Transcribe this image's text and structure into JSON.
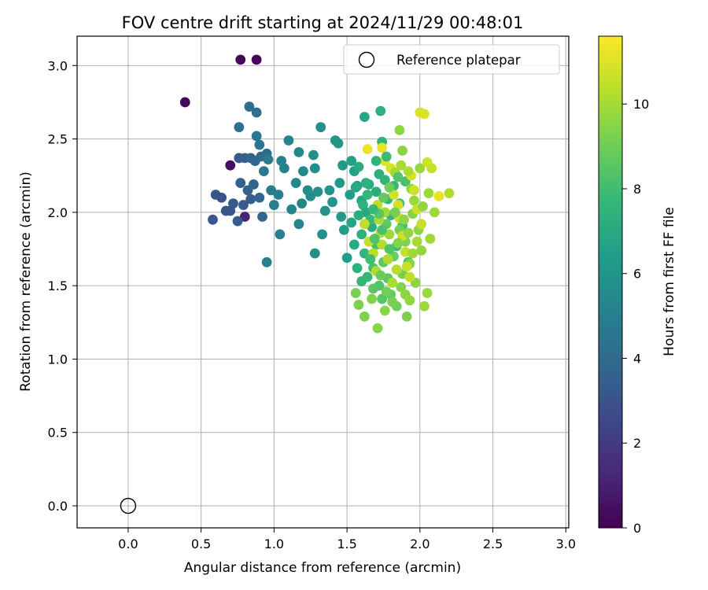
{
  "chart_data": {
    "type": "scatter",
    "title": "FOV centre drift starting at 2024/11/29 00:48:01",
    "xlabel": "Angular distance from reference (arcmin)",
    "ylabel": "Rotation from reference (arcmin)",
    "xlim": [
      -0.35,
      3.02
    ],
    "ylim": [
      -0.15,
      3.2
    ],
    "xticks": [
      0.0,
      0.5,
      1.0,
      1.5,
      2.0,
      2.5,
      3.0
    ],
    "xtick_labels": [
      "0.0",
      "0.5",
      "1.0",
      "1.5",
      "2.0",
      "2.5",
      "3.0"
    ],
    "yticks": [
      0.0,
      0.5,
      1.0,
      1.5,
      2.0,
      2.5,
      3.0
    ],
    "ytick_labels": [
      "0.0",
      "0.5",
      "1.0",
      "1.5",
      "2.0",
      "2.5",
      "3.0"
    ],
    "grid": true,
    "legend": {
      "placement": "upper-right",
      "entries": [
        {
          "label": "Reference platepar",
          "marker": "open-circle"
        }
      ]
    },
    "reference_point": {
      "x": 0.0,
      "y": 0.0
    },
    "colorbar": {
      "label": "Hours from first FF file",
      "min": 0,
      "max": 11.6,
      "ticks": [
        0,
        2,
        4,
        6,
        8,
        10
      ],
      "tick_labels": [
        "0",
        "2",
        "4",
        "6",
        "8",
        "10"
      ],
      "colormap": "viridis",
      "colors": [
        "#440154",
        "#482878",
        "#3e4989",
        "#31688e",
        "#26828e",
        "#1f9e89",
        "#35b779",
        "#6ece58",
        "#b5de2b",
        "#fde725"
      ]
    },
    "points": [
      [
        0.39,
        2.75,
        0.2
      ],
      [
        0.77,
        3.04,
        0.2
      ],
      [
        0.88,
        3.04,
        0.2
      ],
      [
        0.7,
        2.32,
        0.5
      ],
      [
        0.76,
        2.37,
        0.6
      ],
      [
        0.8,
        1.97,
        1.2
      ],
      [
        0.58,
        1.95,
        3.2
      ],
      [
        0.6,
        2.12,
        3.2
      ],
      [
        0.64,
        2.1,
        3.0
      ],
      [
        0.67,
        2.01,
        3.1
      ],
      [
        0.7,
        2.01,
        3.1
      ],
      [
        0.72,
        2.06,
        3.3
      ],
      [
        0.75,
        1.94,
        3.3
      ],
      [
        0.77,
        2.2,
        3.5
      ],
      [
        0.79,
        2.05,
        3.4
      ],
      [
        0.82,
        2.15,
        3.6
      ],
      [
        0.84,
        2.09,
        3.5
      ],
      [
        0.86,
        2.19,
        3.7
      ],
      [
        0.9,
        2.1,
        3.8
      ],
      [
        0.92,
        1.97,
        3.8
      ],
      [
        0.76,
        2.37,
        3.4
      ],
      [
        0.8,
        2.37,
        3.5
      ],
      [
        0.84,
        2.37,
        3.7
      ],
      [
        0.87,
        2.35,
        3.8
      ],
      [
        0.91,
        2.38,
        4.0
      ],
      [
        0.95,
        2.4,
        4.1
      ],
      [
        0.83,
        2.72,
        4.2
      ],
      [
        0.88,
        2.68,
        4.3
      ],
      [
        0.76,
        2.58,
        4.3
      ],
      [
        0.88,
        2.52,
        4.5
      ],
      [
        0.9,
        2.46,
        4.6
      ],
      [
        0.93,
        2.28,
        4.7
      ],
      [
        0.96,
        2.36,
        4.8
      ],
      [
        0.98,
        2.15,
        4.8
      ],
      [
        1.0,
        2.05,
        4.9
      ],
      [
        1.03,
        2.12,
        5.0
      ],
      [
        1.04,
        1.85,
        4.9
      ],
      [
        1.05,
        2.35,
        5.1
      ],
      [
        1.07,
        2.3,
        5.2
      ],
      [
        0.95,
        1.66,
        5.1
      ],
      [
        1.1,
        2.49,
        5.2
      ],
      [
        1.12,
        2.02,
        5.3
      ],
      [
        1.15,
        2.2,
        5.3
      ],
      [
        1.17,
        2.41,
        5.4
      ],
      [
        1.17,
        1.92,
        5.3
      ],
      [
        1.19,
        2.06,
        5.4
      ],
      [
        1.2,
        2.28,
        5.5
      ],
      [
        1.23,
        2.15,
        5.6
      ],
      [
        1.25,
        2.11,
        5.6
      ],
      [
        1.27,
        2.39,
        5.7
      ],
      [
        1.28,
        2.3,
        5.7
      ],
      [
        1.28,
        1.72,
        5.7
      ],
      [
        1.3,
        2.14,
        5.8
      ],
      [
        1.32,
        2.58,
        5.8
      ],
      [
        1.33,
        1.85,
        5.9
      ],
      [
        1.35,
        2.01,
        5.9
      ],
      [
        1.38,
        2.15,
        6.0
      ],
      [
        1.4,
        2.07,
        6.0
      ],
      [
        1.42,
        2.49,
        6.1
      ],
      [
        1.44,
        2.47,
        6.1
      ],
      [
        1.45,
        2.2,
        6.2
      ],
      [
        1.46,
        1.97,
        6.3
      ],
      [
        1.47,
        2.32,
        6.3
      ],
      [
        1.48,
        1.88,
        6.4
      ],
      [
        1.5,
        1.69,
        6.4
      ],
      [
        1.52,
        2.12,
        6.5
      ],
      [
        1.53,
        2.35,
        6.6
      ],
      [
        1.55,
        2.28,
        6.6
      ],
      [
        1.57,
        2.18,
        6.7
      ],
      [
        1.6,
        2.08,
        6.8
      ],
      [
        1.62,
        2.65,
        6.8
      ],
      [
        1.63,
        2.0,
        6.9
      ],
      [
        1.65,
        2.19,
        7.0
      ],
      [
        1.67,
        1.9,
        7.1
      ],
      [
        1.7,
        2.14,
        7.2
      ],
      [
        1.72,
        2.26,
        7.3
      ],
      [
        1.73,
        2.69,
        7.3
      ],
      [
        1.74,
        2.48,
        7.4
      ],
      [
        1.76,
        2.22,
        7.5
      ],
      [
        1.78,
        2.09,
        7.6
      ],
      [
        1.8,
        1.98,
        7.7
      ],
      [
        1.82,
        2.18,
        7.8
      ],
      [
        1.84,
        1.77,
        7.9
      ],
      [
        1.86,
        2.06,
        8.0
      ],
      [
        1.88,
        1.91,
        8.1
      ],
      [
        1.9,
        2.21,
        8.2
      ],
      [
        1.92,
        1.66,
        8.3
      ],
      [
        1.6,
        1.85,
        7.3
      ],
      [
        1.62,
        1.72,
        7.6
      ],
      [
        1.64,
        1.56,
        7.8
      ],
      [
        1.66,
        1.95,
        7.9
      ],
      [
        1.68,
        1.62,
        8.1
      ],
      [
        1.7,
        1.78,
        8.2
      ],
      [
        1.72,
        1.5,
        8.4
      ],
      [
        1.74,
        1.41,
        8.5
      ],
      [
        1.75,
        1.66,
        8.6
      ],
      [
        1.77,
        1.92,
        8.7
      ],
      [
        1.78,
        1.55,
        8.7
      ],
      [
        1.8,
        1.44,
        8.8
      ],
      [
        1.82,
        1.7,
        8.9
      ],
      [
        1.84,
        1.36,
        9.0
      ],
      [
        1.86,
        1.88,
        9.1
      ],
      [
        1.88,
        1.58,
        9.2
      ],
      [
        1.9,
        1.8,
        9.3
      ],
      [
        1.91,
        1.29,
        9.3
      ],
      [
        1.93,
        1.65,
        9.4
      ],
      [
        1.95,
        1.99,
        9.5
      ],
      [
        1.97,
        1.52,
        9.6
      ],
      [
        1.99,
        1.88,
        9.6
      ],
      [
        2.01,
        1.74,
        9.7
      ],
      [
        2.03,
        1.36,
        9.8
      ],
      [
        2.05,
        1.45,
        9.8
      ],
      [
        2.07,
        1.82,
        9.9
      ],
      [
        1.56,
        1.45,
        9.2
      ],
      [
        1.58,
        1.37,
        9.3
      ],
      [
        1.62,
        1.29,
        9.3
      ],
      [
        1.67,
        1.41,
        9.4
      ],
      [
        1.71,
        1.21,
        9.5
      ],
      [
        1.76,
        1.33,
        9.5
      ],
      [
        1.86,
        2.56,
        9.6
      ],
      [
        1.88,
        2.42,
        9.5
      ],
      [
        1.94,
        2.16,
        9.7
      ],
      [
        1.96,
        2.08,
        9.8
      ],
      [
        2.0,
        2.3,
        9.8
      ],
      [
        2.06,
        2.13,
        9.9
      ],
      [
        2.1,
        2.0,
        9.9
      ],
      [
        2.2,
        2.13,
        10.2
      ],
      [
        2.0,
        2.68,
        10.9
      ],
      [
        2.03,
        2.67,
        11.0
      ],
      [
        1.64,
        2.43,
        11.3
      ],
      [
        1.74,
        2.44,
        11.2
      ],
      [
        1.76,
        2.35,
        11.0
      ],
      [
        1.8,
        2.3,
        10.9
      ],
      [
        1.82,
        2.12,
        10.8
      ],
      [
        1.85,
        2.05,
        10.8
      ],
      [
        1.86,
        1.96,
        10.7
      ],
      [
        1.88,
        1.84,
        10.7
      ],
      [
        1.9,
        1.73,
        10.6
      ],
      [
        1.91,
        1.63,
        10.6
      ],
      [
        1.93,
        1.56,
        10.5
      ],
      [
        1.94,
        2.25,
        10.9
      ],
      [
        1.96,
        2.15,
        10.8
      ],
      [
        1.98,
        2.02,
        10.7
      ],
      [
        2.01,
        1.92,
        10.6
      ],
      [
        2.05,
        2.34,
        10.8
      ],
      [
        2.08,
        2.3,
        10.6
      ],
      [
        2.13,
        2.11,
        11.2
      ],
      [
        1.71,
        2.05,
        10.4
      ],
      [
        1.73,
        1.86,
        10.3
      ],
      [
        1.74,
        1.78,
        10.3
      ],
      [
        1.78,
        1.68,
        10.2
      ],
      [
        1.81,
        1.52,
        10.1
      ],
      [
        1.84,
        1.61,
        10.3
      ],
      [
        1.62,
        1.92,
        10.5
      ],
      [
        1.65,
        1.8,
        10.6
      ],
      [
        1.68,
        1.72,
        10.4
      ],
      [
        1.7,
        1.6,
        10.2
      ],
      [
        1.72,
        1.95,
        10.1
      ],
      [
        1.76,
        2.0,
        10.0
      ],
      [
        1.79,
        1.85,
        9.9
      ],
      [
        1.83,
        2.27,
        10.0
      ],
      [
        1.87,
        2.32,
        10.1
      ],
      [
        1.92,
        2.28,
        10.2
      ],
      [
        1.55,
        1.78,
        7.0
      ],
      [
        1.58,
        1.98,
        7.2
      ],
      [
        1.61,
        2.05,
        7.5
      ],
      [
        1.64,
        2.12,
        7.7
      ],
      [
        1.66,
        1.68,
        8.0
      ],
      [
        1.69,
        1.82,
        8.3
      ],
      [
        1.72,
        1.99,
        8.5
      ],
      [
        1.75,
        2.1,
        8.8
      ],
      [
        1.79,
        2.17,
        9.0
      ],
      [
        1.83,
        2.0,
        9.2
      ],
      [
        1.85,
        1.79,
        9.4
      ],
      [
        1.89,
        1.95,
        9.6
      ],
      [
        1.92,
        1.86,
        9.7
      ],
      [
        1.95,
        1.72,
        9.9
      ],
      [
        1.98,
        1.8,
        10.0
      ],
      [
        2.02,
        2.04,
        9.7
      ],
      [
        1.53,
        1.93,
        6.8
      ],
      [
        1.57,
        1.62,
        7.4
      ],
      [
        1.6,
        1.53,
        7.7
      ],
      [
        1.68,
        1.48,
        8.6
      ],
      [
        1.73,
        1.57,
        8.9
      ],
      [
        1.77,
        1.46,
        9.1
      ],
      [
        1.81,
        1.39,
        9.2
      ],
      [
        1.87,
        1.49,
        9.4
      ],
      [
        1.9,
        1.44,
        9.6
      ],
      [
        1.93,
        1.4,
        9.7
      ],
      [
        1.79,
        1.75,
        8.4
      ],
      [
        1.74,
        1.88,
        8.2
      ],
      [
        1.68,
        2.02,
        7.8
      ],
      [
        1.63,
        2.2,
        7.4
      ],
      [
        1.58,
        2.31,
        7.1
      ],
      [
        1.56,
        2.17,
        6.9
      ],
      [
        1.7,
        2.35,
        7.6
      ],
      [
        1.77,
        2.38,
        7.9
      ],
      [
        1.85,
        2.24,
        8.4
      ]
    ]
  }
}
